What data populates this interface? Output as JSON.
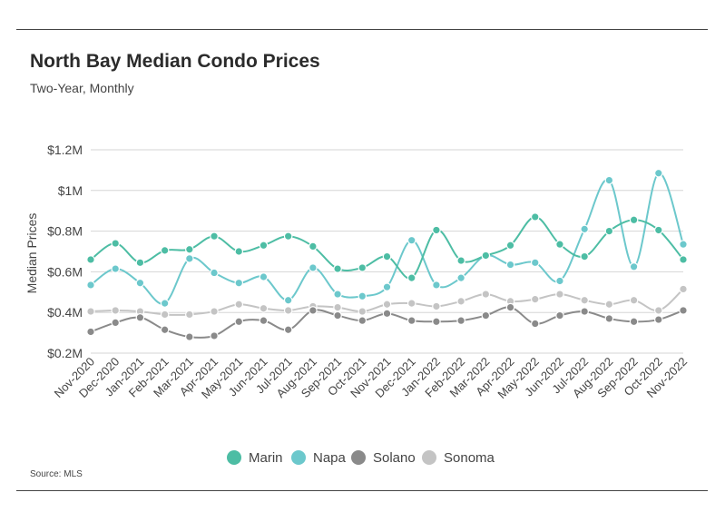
{
  "header": {
    "title": "North Bay Median Condo Prices",
    "subtitle": "Two-Year, Monthly"
  },
  "source": "Source:  MLS",
  "colors": {
    "Marin": "#4dbda4",
    "Napa": "#6cc8cc",
    "Solano": "#8a8a8a",
    "Sonoma": "#c4c4c4",
    "grid": "#d6d6d6"
  },
  "chart_data": {
    "type": "line",
    "title": "North Bay Median Condo Prices",
    "subtitle": "Two-Year, Monthly",
    "xlabel": "",
    "ylabel": "Median Prices",
    "ylim": [
      0.2,
      1.2
    ],
    "yticks": [
      0.2,
      0.4,
      0.6,
      0.8,
      1.0,
      1.2
    ],
    "ytick_labels": [
      "$0.2M",
      "$0.4M",
      "$0.6M",
      "$0.8M",
      "$1M",
      "$1.2M"
    ],
    "grid": true,
    "legend_position": "bottom",
    "categories": [
      "Nov-2020",
      "Dec-2020",
      "Jan-2021",
      "Feb-2021",
      "Mar-2021",
      "Apr-2021",
      "May-2021",
      "Jun-2021",
      "Jul-2021",
      "Aug-2021",
      "Sep-2021",
      "Oct-2021",
      "Nov-2021",
      "Dec-2021",
      "Jan-2022",
      "Feb-2022",
      "Mar-2022",
      "Apr-2022",
      "May-2022",
      "Jun-2022",
      "Jul-2022",
      "Aug-2022",
      "Sep-2022",
      "Oct-2022",
      "Nov-2022"
    ],
    "series": [
      {
        "name": "Marin",
        "values": [
          0.66,
          0.74,
          0.645,
          0.705,
          0.71,
          0.775,
          0.7,
          0.73,
          0.775,
          0.725,
          0.615,
          0.62,
          0.675,
          0.57,
          0.805,
          0.655,
          0.68,
          0.73,
          0.87,
          0.735,
          0.675,
          0.8,
          0.855,
          0.805,
          0.66
        ]
      },
      {
        "name": "Napa",
        "values": [
          0.535,
          0.615,
          0.545,
          0.445,
          0.665,
          0.595,
          0.545,
          0.575,
          0.46,
          0.62,
          0.49,
          0.48,
          0.525,
          0.755,
          0.535,
          0.57,
          0.68,
          0.635,
          0.645,
          0.555,
          0.81,
          1.05,
          0.625,
          1.085,
          0.735
        ]
      },
      {
        "name": "Solano",
        "values": [
          0.305,
          0.35,
          0.375,
          0.315,
          0.28,
          0.285,
          0.355,
          0.36,
          0.315,
          0.41,
          0.385,
          0.36,
          0.395,
          0.36,
          0.355,
          0.36,
          0.385,
          0.425,
          0.345,
          0.385,
          0.405,
          0.37,
          0.355,
          0.365,
          0.41
        ]
      },
      {
        "name": "Sonoma",
        "values": [
          0.405,
          0.41,
          0.405,
          0.39,
          0.39,
          0.405,
          0.44,
          0.42,
          0.41,
          0.43,
          0.425,
          0.405,
          0.44,
          0.445,
          0.43,
          0.455,
          0.49,
          0.455,
          0.465,
          0.49,
          0.46,
          0.44,
          0.46,
          0.41,
          0.515
        ]
      }
    ]
  }
}
